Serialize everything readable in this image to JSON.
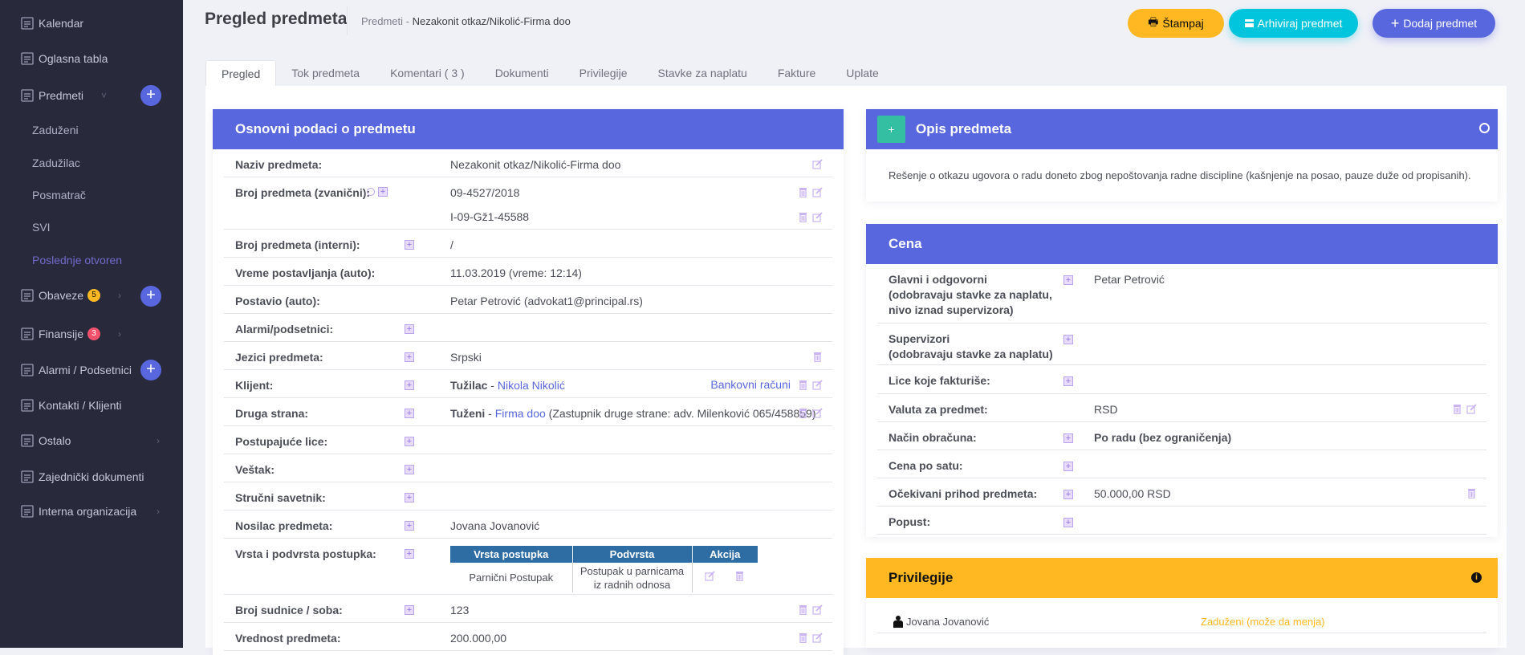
{
  "sidebar": {
    "items": [
      {
        "label": "Kalendar",
        "icon": "calendar-icon"
      },
      {
        "label": "Oglasna tabla",
        "icon": "message-board-icon"
      },
      {
        "label": "Predmeti",
        "icon": "document-icon"
      },
      {
        "label": "Obaveze",
        "icon": "tasks-icon",
        "badge": "5",
        "badge_color": "#ffb822"
      },
      {
        "label": "Finansije",
        "icon": "chart-icon",
        "badge": "3",
        "badge_color": "#f4516c"
      },
      {
        "label": "Alarmi / Podsetnici",
        "icon": "bell-icon"
      },
      {
        "label": "Kontakti / Klijenti",
        "icon": "contacts-icon"
      },
      {
        "label": "Ostalo",
        "icon": "layers-icon"
      },
      {
        "label": "Zajednički dokumenti",
        "icon": "folder-icon"
      },
      {
        "label": "Interna organizacija",
        "icon": "layers-icon"
      }
    ],
    "sub_items": [
      "Zaduženi",
      "Zadužilac",
      "Posmatrač",
      "SVI",
      "Poslednje otvoren"
    ]
  },
  "header": {
    "title": "Pregled predmeta",
    "breadcrumb_root": "Predmeti",
    "breadcrumb_sep": "-",
    "breadcrumb_current": "Nezakonit otkaz/Nikolić-Firma doo",
    "print_label": "Štampaj",
    "archive_label": "Arhiviraj predmet",
    "add_label": "Dodaj predmet"
  },
  "colors": {
    "accent": "#5867dd",
    "print": "#ffb822",
    "archive": "#00c5dc",
    "warning": "#ffb822",
    "success": "#34bfa3"
  },
  "tabs": [
    "Pregled",
    "Tok predmeta",
    "Komentari ( 3 )",
    "Dokumenti",
    "Privilegije",
    "Stavke za naplatu",
    "Fakture",
    "Uplate"
  ],
  "basic": {
    "title": "Osnovni podaci o predmetu",
    "rows": [
      {
        "label": "Naziv predmeta:",
        "value": "Nezakonit otkaz/Nikolić-Firma doo",
        "acts": [
          "edit"
        ]
      },
      {
        "label": "Broj predmeta (zvanični):",
        "value": "09-4527/2018",
        "value2": "I-09-Gž1-45588",
        "acts": [
          "trash",
          "edit"
        ]
      },
      {
        "label": "Broj predmeta (interni):",
        "plus": true,
        "value": "/"
      },
      {
        "label": "Vreme postavljanja (auto):",
        "value": "11.03.2019 (vreme: 12:14)"
      },
      {
        "label": "Postavio (auto):",
        "value": "Petar Petrović (advokat1@principal.rs)"
      },
      {
        "label": "Alarmi/podsetnici:",
        "plus": true
      },
      {
        "label": "Jezici predmeta:",
        "plus": true,
        "value": "Srpski",
        "acts": [
          "trash"
        ]
      },
      {
        "label": "Klijent:",
        "plus": true,
        "bold": "Tužilac",
        "sep": " - ",
        "link": "Nikola Nikolić",
        "right_link": "Bankovni računi",
        "acts": [
          "trash",
          "edit"
        ]
      },
      {
        "label": "Druga strana:",
        "plus": true,
        "bold": "Tuženi",
        "sep": " - ",
        "link": "Firma doo",
        "suffix": " (Zastupnik druge strane: adv. Milenković 065/458859)",
        "acts": [
          "trash",
          "edit"
        ]
      },
      {
        "label": "Postupajuće lice:",
        "plus": true
      },
      {
        "label": "Veštak:",
        "plus": true
      },
      {
        "label": "Stručni savetnik:",
        "plus": true
      },
      {
        "label": "Nosilac predmeta:",
        "plus": true,
        "value": "Jovana Jovanović"
      },
      {
        "label": "Vrsta i podvrsta postupka:",
        "plus": true,
        "table": true
      },
      {
        "label": "Broj sudnice / soba:",
        "plus": true,
        "value": "123",
        "acts": [
          "trash",
          "edit"
        ]
      },
      {
        "label": "Vrednost predmeta:",
        "value": "200.000,00",
        "acts": [
          "trash",
          "edit"
        ]
      }
    ],
    "procedure_table": {
      "headers": [
        "Vrsta postupka",
        "Podvrsta",
        "Akcija"
      ],
      "row": [
        "Parnični Postupak",
        "Postupak u parnicama iz radnih odnosa"
      ]
    }
  },
  "description": {
    "title": "Opis predmeta",
    "text": "Rešenje o otkazu ugovora o radu doneto zbog nepoštovanja radne discipline (kašnjenje na posao, pauze duže od propisanih)."
  },
  "price": {
    "title": "Cena",
    "rows": [
      {
        "label": "Glavni i odgovorni\n(odobravaju stavke za naplatu,\nnivo iznad supervizora)",
        "plus": true,
        "value": "Petar Petrović"
      },
      {
        "label": "Supervizori\n(odobravaju stavke za naplatu)",
        "plus": true
      },
      {
        "label": "Lice koje fakturiše:",
        "plus": true
      },
      {
        "label": "Valuta za predmet:",
        "value": "RSD",
        "acts": [
          "trash",
          "edit"
        ]
      },
      {
        "label": "Način obračuna:",
        "plus": true,
        "value": "Po radu (bez ograničenja)",
        "strong": true
      },
      {
        "label": "Cena po satu:",
        "plus": true
      },
      {
        "label": "Očekivani prihod predmeta:",
        "plus": true,
        "value": "50.000,00 RSD",
        "acts": [
          "trash"
        ]
      },
      {
        "label": "Popust:",
        "plus": true
      }
    ]
  },
  "privileges": {
    "title": "Privilegije",
    "rows": [
      {
        "name": "Jovana Jovanović",
        "role": "Zaduženi (može da menja)"
      }
    ]
  }
}
